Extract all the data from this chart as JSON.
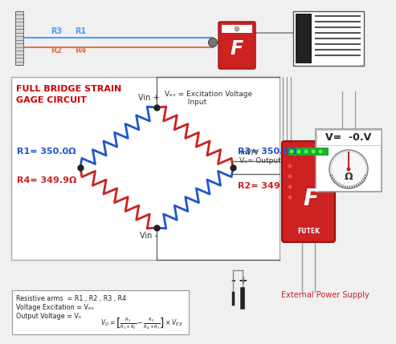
{
  "bg_color": "#f0f0f0",
  "bridge_title": "FULL BRIDGE STRAIN\nGAGE CIRCUIT",
  "bridge_title_color": "#cc0000",
  "r1_label": "R1= 350.0Ω",
  "r2_label": "R2= 349.9Ω",
  "r3_label": "R3= 350.0Ω",
  "r4_label": "R4= 349.9Ω",
  "r1_color": "#2255cc",
  "r2_color": "#cc2222",
  "r3_color": "#2255cc",
  "r4_color": "#cc2222",
  "vin_plus": "Vin +",
  "vin_minus": "Vin -",
  "vex_label": "Vₑₓ = Excitation Voltage\n          Input",
  "vo_label": "mV/V\nVₒ= Output",
  "voltmeter_label": "V=  -0.V",
  "ext_power_label": "External Power Supply",
  "formula_line1": "Resistive arms  = R1 , R2 , R3 , R4",
  "formula_line2": "Voltage Excitation = Vₑₓ",
  "formula_line3": "Output Voltage = Vₒ",
  "wire_blue_color": "#5599ff",
  "wire_red_color": "#dd7755",
  "wire_green_color": "#33aa33",
  "line_color": "#888888",
  "red_color": "#cc2222",
  "blue_color": "#2255cc",
  "dark_color": "#333333",
  "r_label_fontsize": 8,
  "title_fontsize": 8
}
